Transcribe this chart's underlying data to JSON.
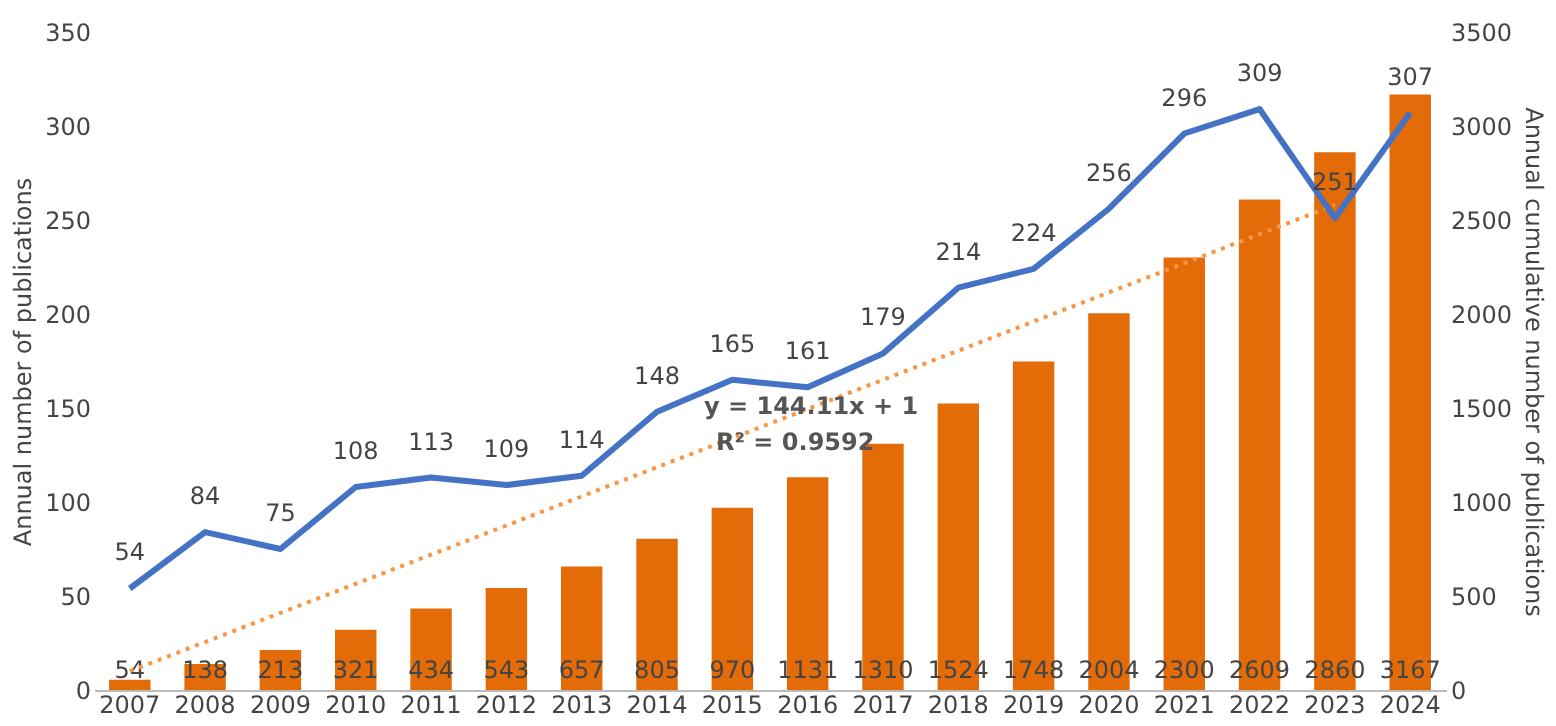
{
  "chart_data": {
    "type": "bar",
    "categories": [
      "2007",
      "2008",
      "2009",
      "2010",
      "2011",
      "2012",
      "2013",
      "2014",
      "2015",
      "2016",
      "2017",
      "2018",
      "2019",
      "2020",
      "2021",
      "2022",
      "2023",
      "2024"
    ],
    "ylabel": "Annual number of publications",
    "y2label": "Annual cumulative number of publications",
    "ylim": [
      0,
      350
    ],
    "yticks": [
      0,
      50,
      100,
      150,
      200,
      250,
      300,
      350
    ],
    "y2lim": [
      0,
      3500
    ],
    "y2ticks": [
      0,
      500,
      1000,
      1500,
      2000,
      2500,
      3000,
      3500
    ],
    "series": [
      {
        "axis": "y2",
        "color": "#e36c09",
        "values": [
          54,
          138,
          213,
          321,
          434,
          543,
          657,
          805,
          970,
          1131,
          1310,
          1524,
          1748,
          2004,
          2300,
          2609,
          2860,
          3167
        ]
      },
      {
        "type": "line",
        "axis": "y",
        "color": "#4472c4",
        "values": [
          54,
          84,
          75,
          108,
          113,
          109,
          114,
          148,
          165,
          161,
          179,
          214,
          224,
          256,
          296,
          309,
          251,
          307
        ]
      },
      {
        "type": "line",
        "axis": "y2",
        "color": "#f79646",
        "line_style": "dotted",
        "values": [
          100,
          255,
          410,
          565,
          720,
          875,
          1030,
          1185,
          1340,
          1495,
          1650,
          1805,
          1960,
          2115,
          2270,
          2425,
          2580,
          null
        ],
        "value_labels": [
          null,
          null,
          null,
          null,
          null,
          null,
          null,
          null,
          null,
          null,
          null,
          null,
          null,
          null,
          null,
          null,
          null,
          null
        ]
      }
    ],
    "data_labels": true,
    "annotations": [
      "y = 144.11x + 1",
      "R² = 0.9592"
    ],
    "grid": false,
    "legend": false
  }
}
